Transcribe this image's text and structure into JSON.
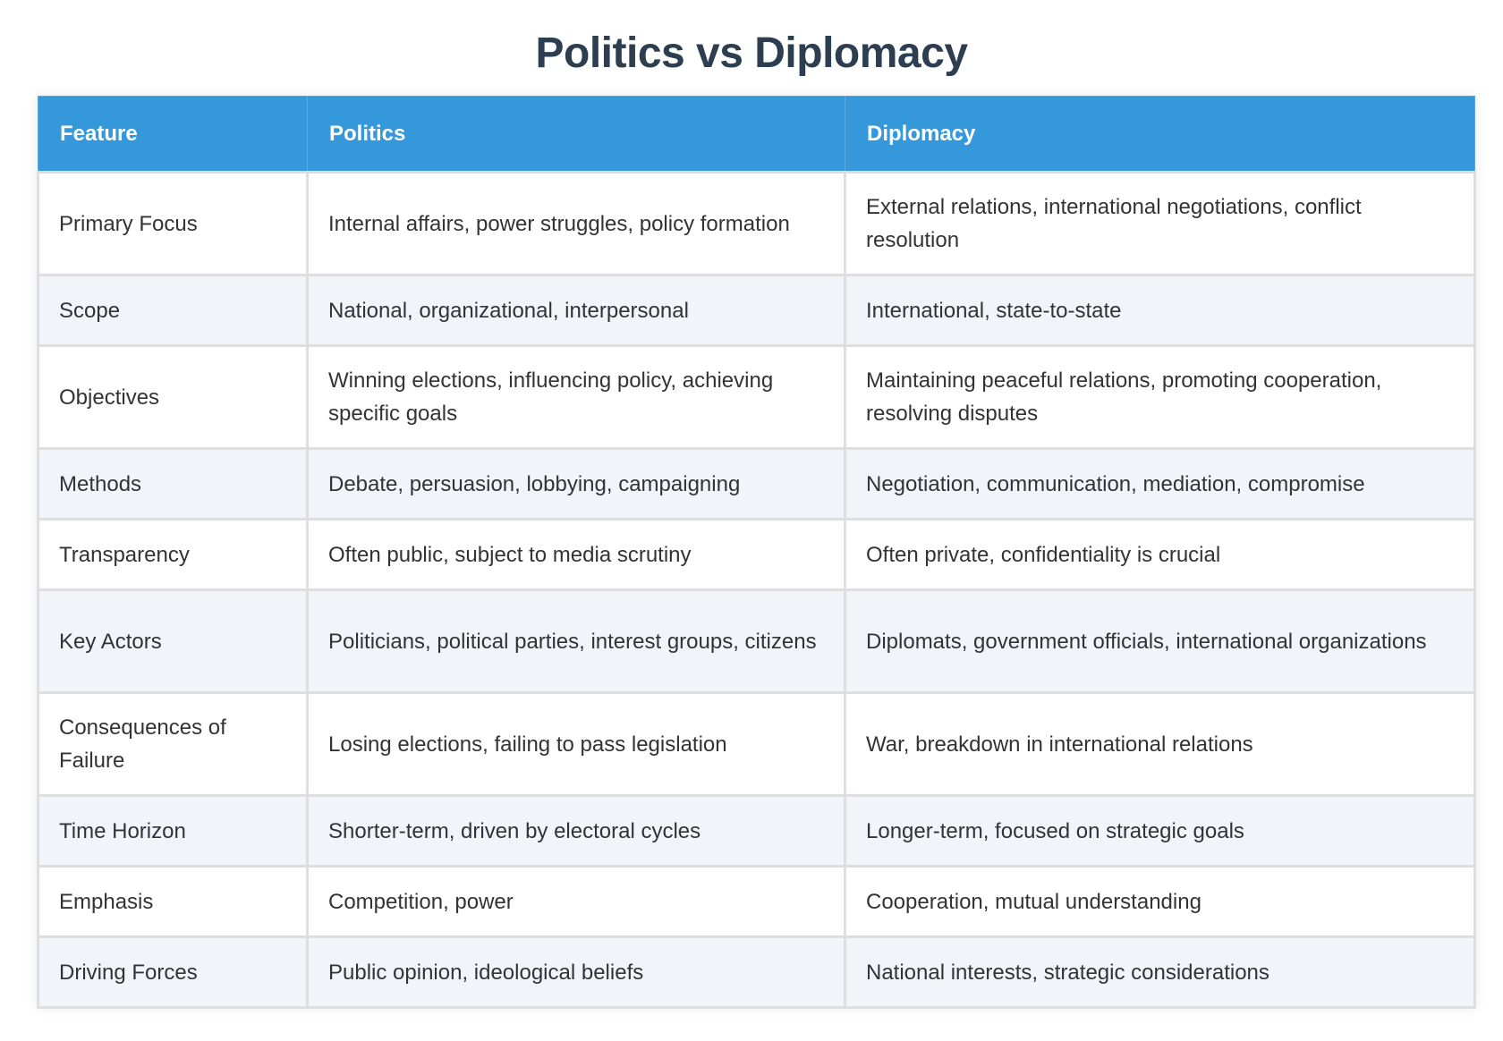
{
  "title": "Politics vs Diplomacy",
  "colors": {
    "header_bg": "#3498db",
    "title_text": "#2c3e50",
    "stripe_bg": "#f1f5f9",
    "body_text": "#333333"
  },
  "table": {
    "headers": [
      "Feature",
      "Politics",
      "Diplomacy"
    ],
    "rows": [
      {
        "feature": "Primary Focus",
        "politics": "Internal affairs, power struggles, policy formation",
        "diplomacy": "External relations, international negotiations, conflict resolution"
      },
      {
        "feature": "Scope",
        "politics": "National, organizational, interpersonal",
        "diplomacy": "International, state-to-state"
      },
      {
        "feature": "Objectives",
        "politics": "Winning elections, influencing policy, achieving specific goals",
        "diplomacy": "Maintaining peaceful relations, promoting cooperation, resolving disputes"
      },
      {
        "feature": "Methods",
        "politics": "Debate, persuasion, lobbying, campaigning",
        "diplomacy": "Negotiation, communication, mediation, compromise"
      },
      {
        "feature": "Transparency",
        "politics": "Often public, subject to media scrutiny",
        "diplomacy": "Often private, confidentiality is crucial"
      },
      {
        "feature": "Key Actors",
        "politics": "Politicians, political parties, interest groups, citizens",
        "diplomacy": "Diplomats, government officials, international organizations"
      },
      {
        "feature": "Consequences of Failure",
        "politics": "Losing elections, failing to pass legislation",
        "diplomacy": "War, breakdown in international relations"
      },
      {
        "feature": "Time Horizon",
        "politics": "Shorter-term, driven by electoral cycles",
        "diplomacy": "Longer-term, focused on strategic goals"
      },
      {
        "feature": "Emphasis",
        "politics": "Competition, power",
        "diplomacy": "Cooperation, mutual understanding"
      },
      {
        "feature": "Driving Forces",
        "politics": "Public opinion, ideological beliefs",
        "diplomacy": "National interests, strategic considerations"
      }
    ]
  }
}
